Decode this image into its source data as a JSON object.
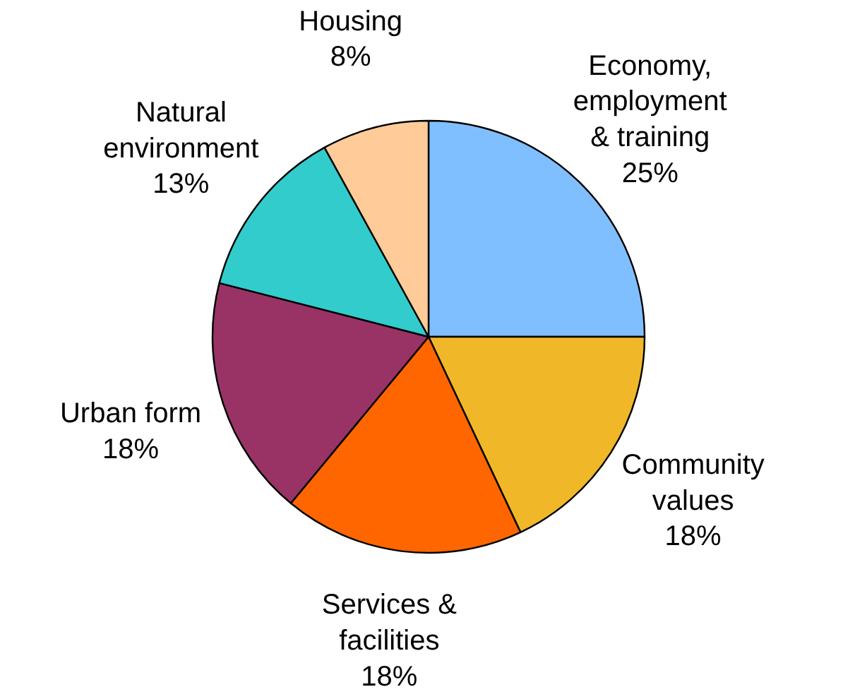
{
  "chart_data": {
    "type": "pie",
    "categories": [
      "Economy, employment & training",
      "Community values",
      "Services & facilities",
      "Urban form",
      "Natural environment",
      "Housing"
    ],
    "values": [
      25,
      18,
      18,
      18,
      13,
      8
    ],
    "value_labels": [
      "25%",
      "18%",
      "18%",
      "18%",
      "13%",
      "8%"
    ],
    "colors": [
      "#80bfff",
      "#f0b828",
      "#ff6600",
      "#993366",
      "#33cccc",
      "#ffcc99"
    ],
    "legend": false
  }
}
